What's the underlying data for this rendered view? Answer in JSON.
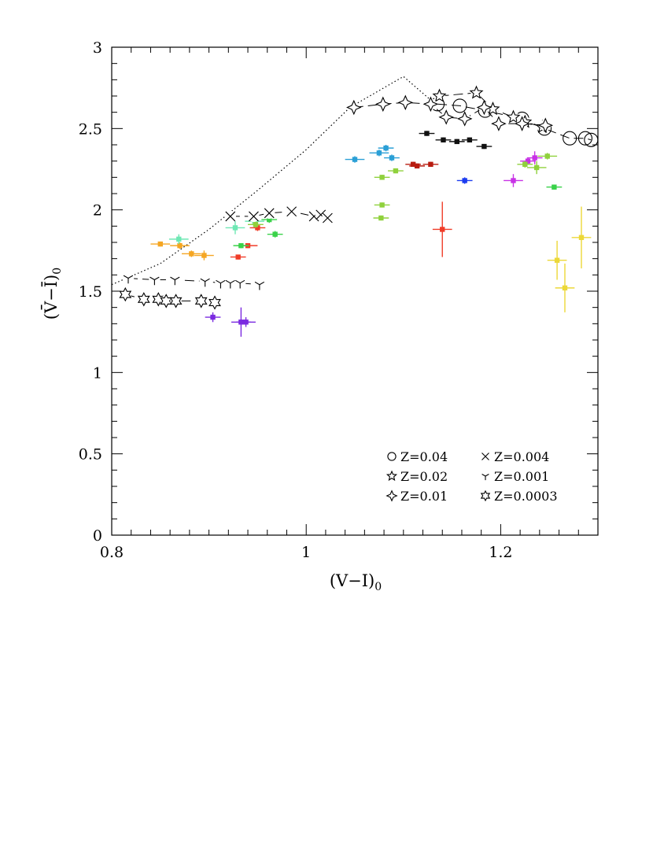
{
  "chart_data": {
    "type": "scatter",
    "xlabel_base": "(V−I)",
    "xlabel_sub": "0",
    "ylabel_base": "(V̄−Ī)",
    "ylabel_sub": "0",
    "xlim": [
      0.8,
      1.3
    ],
    "ylim": [
      0,
      3
    ],
    "x_ticks": [
      {
        "value": 0.8,
        "label": "0.8"
      },
      {
        "value": 1.0,
        "label": "1"
      },
      {
        "value": 1.2,
        "label": "1.2"
      }
    ],
    "y_ticks": [
      {
        "value": 0,
        "label": "0"
      },
      {
        "value": 0.5,
        "label": "0.5"
      },
      {
        "value": 1,
        "label": "1"
      },
      {
        "value": 1.5,
        "label": "1.5"
      },
      {
        "value": 2,
        "label": "2"
      },
      {
        "value": 2.5,
        "label": "2.5"
      },
      {
        "value": 3,
        "label": "3"
      }
    ],
    "legend": {
      "placement": "bottom-right",
      "entries": [
        {
          "label": "Z=0.04",
          "marker": "circle"
        },
        {
          "label": "Z=0.004",
          "marker": "x"
        },
        {
          "label": "Z=0.02",
          "marker": "star5"
        },
        {
          "label": "Z=0.001",
          "marker": "tri"
        },
        {
          "label": "Z=0.01",
          "marker": "star4"
        },
        {
          "label": "Z=0.0003",
          "marker": "star6"
        }
      ]
    },
    "model_series": [
      {
        "name": "Z=0.04",
        "marker": "circle",
        "points": [
          [
            1.135,
            2.65
          ],
          [
            1.158,
            2.64
          ],
          [
            1.184,
            2.61
          ],
          [
            1.222,
            2.56
          ],
          [
            1.245,
            2.5
          ],
          [
            1.271,
            2.44
          ],
          [
            1.287,
            2.44
          ],
          [
            1.293,
            2.43
          ]
        ]
      },
      {
        "name": "Z=0.02",
        "marker": "star5",
        "points": [
          [
            1.137,
            2.7
          ],
          [
            1.175,
            2.72
          ],
          [
            1.192,
            2.62
          ],
          [
            1.213,
            2.57
          ],
          [
            1.225,
            2.54
          ],
          [
            1.243,
            2.51
          ]
        ]
      },
      {
        "name": "Z=0.01",
        "marker": "star4",
        "points": [
          [
            1.049,
            2.63
          ],
          [
            1.079,
            2.65
          ],
          [
            1.102,
            2.66
          ],
          [
            1.128,
            2.65
          ],
          [
            1.144,
            2.57
          ],
          [
            1.163,
            2.56
          ],
          [
            1.183,
            2.63
          ],
          [
            1.198,
            2.53
          ],
          [
            1.222,
            2.53
          ],
          [
            1.246,
            2.52
          ]
        ]
      },
      {
        "name": "Z=0.004",
        "marker": "x",
        "points": [
          [
            0.922,
            1.96
          ],
          [
            0.946,
            1.96
          ],
          [
            0.962,
            1.98
          ],
          [
            0.985,
            1.99
          ],
          [
            1.008,
            1.96
          ],
          [
            1.015,
            1.97
          ],
          [
            1.022,
            1.95
          ]
        ]
      },
      {
        "name": "Z=0.001",
        "marker": "tri",
        "points": [
          [
            0.817,
            1.58
          ],
          [
            0.844,
            1.57
          ],
          [
            0.865,
            1.57
          ],
          [
            0.896,
            1.56
          ],
          [
            0.912,
            1.55
          ],
          [
            0.922,
            1.55
          ],
          [
            0.932,
            1.55
          ],
          [
            0.952,
            1.54
          ]
        ]
      },
      {
        "name": "Z=0.0003",
        "marker": "star6",
        "points": [
          [
            0.814,
            1.48
          ],
          [
            0.833,
            1.45
          ],
          [
            0.848,
            1.45
          ],
          [
            0.856,
            1.44
          ],
          [
            0.866,
            1.44
          ],
          [
            0.892,
            1.44
          ],
          [
            0.906,
            1.43
          ]
        ]
      }
    ],
    "dotted_curve": [
      [
        0.8,
        1.54
      ],
      [
        0.85,
        1.67
      ],
      [
        0.9,
        1.88
      ],
      [
        0.95,
        2.12
      ],
      [
        1.0,
        2.37
      ],
      [
        1.045,
        2.63
      ],
      [
        1.1,
        2.82
      ],
      [
        1.131,
        2.66
      ]
    ],
    "observations": [
      {
        "x": 0.85,
        "y": 1.79,
        "xerr": 0.01,
        "yerr": 0.015,
        "color": "#f5a623"
      },
      {
        "x": 0.87,
        "y": 1.78,
        "xerr": 0.01,
        "yerr": 0.02,
        "color": "#f5a623"
      },
      {
        "x": 0.882,
        "y": 1.73,
        "xerr": 0.01,
        "yerr": 0.02,
        "color": "#f5a623"
      },
      {
        "x": 0.895,
        "y": 1.72,
        "xerr": 0.01,
        "yerr": 0.03,
        "color": "#f5a623"
      },
      {
        "x": 0.869,
        "y": 1.82,
        "xerr": 0.01,
        "yerr": 0.03,
        "color": "#6ee8b4"
      },
      {
        "x": 0.927,
        "y": 1.89,
        "xerr": 0.01,
        "yerr": 0.04,
        "color": "#6ee8b4"
      },
      {
        "x": 0.947,
        "y": 1.93,
        "xerr": 0.01,
        "yerr": 0.04,
        "color": "#6ee8b4"
      },
      {
        "x": 0.93,
        "y": 1.71,
        "xerr": 0.008,
        "yerr": 0.015,
        "color": "#f03c28"
      },
      {
        "x": 0.94,
        "y": 1.78,
        "xerr": 0.01,
        "yerr": 0.015,
        "color": "#f03c28"
      },
      {
        "x": 0.95,
        "y": 1.89,
        "xerr": 0.008,
        "yerr": 0.02,
        "color": "#f03c28"
      },
      {
        "x": 0.933,
        "y": 1.78,
        "xerr": 0.008,
        "yerr": 0.015,
        "color": "#3ad24a"
      },
      {
        "x": 0.962,
        "y": 1.94,
        "xerr": 0.008,
        "yerr": 0.02,
        "color": "#3ad24a"
      },
      {
        "x": 0.968,
        "y": 1.85,
        "xerr": 0.008,
        "yerr": 0.02,
        "color": "#3ad24a"
      },
      {
        "x": 0.948,
        "y": 1.91,
        "xerr": 0.008,
        "yerr": 0.02,
        "color": "#8fd13c"
      },
      {
        "x": 0.904,
        "y": 1.34,
        "xerr": 0.008,
        "yerr": 0.03,
        "color": "#7a2ae0"
      },
      {
        "x": 0.933,
        "y": 1.31,
        "xerr": 0.01,
        "yerr": 0.09,
        "color": "#7a2ae0"
      },
      {
        "x": 0.938,
        "y": 1.31,
        "xerr": 0.01,
        "yerr": 0.03,
        "color": "#7a2ae0"
      },
      {
        "x": 1.05,
        "y": 2.31,
        "xerr": 0.01,
        "yerr": 0.02,
        "color": "#2a9fd6"
      },
      {
        "x": 1.075,
        "y": 2.35,
        "xerr": 0.01,
        "yerr": 0.02,
        "color": "#2a9fd6"
      },
      {
        "x": 1.082,
        "y": 2.38,
        "xerr": 0.008,
        "yerr": 0.02,
        "color": "#2a9fd6"
      },
      {
        "x": 1.088,
        "y": 2.32,
        "xerr": 0.008,
        "yerr": 0.02,
        "color": "#2a9fd6"
      },
      {
        "x": 1.078,
        "y": 2.2,
        "xerr": 0.008,
        "yerr": 0.015,
        "color": "#8fd13c"
      },
      {
        "x": 1.092,
        "y": 2.24,
        "xerr": 0.008,
        "yerr": 0.015,
        "color": "#8fd13c"
      },
      {
        "x": 1.078,
        "y": 2.03,
        "xerr": 0.008,
        "yerr": 0.015,
        "color": "#8fd13c"
      },
      {
        "x": 1.077,
        "y": 1.95,
        "xerr": 0.008,
        "yerr": 0.015,
        "color": "#8fd13c"
      },
      {
        "x": 1.11,
        "y": 2.28,
        "xerr": 0.008,
        "yerr": 0.015,
        "color": "#b81c10"
      },
      {
        "x": 1.114,
        "y": 2.27,
        "xerr": 0.008,
        "yerr": 0.015,
        "color": "#b81c10"
      },
      {
        "x": 1.128,
        "y": 2.28,
        "xerr": 0.008,
        "yerr": 0.015,
        "color": "#b81c10"
      },
      {
        "x": 1.14,
        "y": 1.88,
        "xerr": 0.01,
        "yerr": 0.17,
        "color": "#f03c28"
      },
      {
        "x": 1.124,
        "y": 2.47,
        "xerr": 0.008,
        "yerr": 0.015,
        "color": "#111111"
      },
      {
        "x": 1.141,
        "y": 2.43,
        "xerr": 0.008,
        "yerr": 0.015,
        "color": "#111111"
      },
      {
        "x": 1.155,
        "y": 2.42,
        "xerr": 0.008,
        "yerr": 0.015,
        "color": "#111111"
      },
      {
        "x": 1.168,
        "y": 2.43,
        "xerr": 0.008,
        "yerr": 0.015,
        "color": "#111111"
      },
      {
        "x": 1.183,
        "y": 2.39,
        "xerr": 0.008,
        "yerr": 0.015,
        "color": "#111111"
      },
      {
        "x": 1.163,
        "y": 2.18,
        "xerr": 0.008,
        "yerr": 0.02,
        "color": "#1c3cf0"
      },
      {
        "x": 1.213,
        "y": 2.18,
        "xerr": 0.01,
        "yerr": 0.04,
        "color": "#c832e6"
      },
      {
        "x": 1.228,
        "y": 2.3,
        "xerr": 0.008,
        "yerr": 0.02,
        "color": "#c832e6"
      },
      {
        "x": 1.235,
        "y": 2.32,
        "xerr": 0.008,
        "yerr": 0.04,
        "color": "#c832e6"
      },
      {
        "x": 1.225,
        "y": 2.28,
        "xerr": 0.008,
        "yerr": 0.02,
        "color": "#8fd13c"
      },
      {
        "x": 1.237,
        "y": 2.26,
        "xerr": 0.01,
        "yerr": 0.04,
        "color": "#8fd13c"
      },
      {
        "x": 1.248,
        "y": 2.33,
        "xerr": 0.01,
        "yerr": 0.02,
        "color": "#8fd13c"
      },
      {
        "x": 1.255,
        "y": 2.14,
        "xerr": 0.008,
        "yerr": 0.015,
        "color": "#3ad24a"
      },
      {
        "x": 1.258,
        "y": 1.69,
        "xerr": 0.01,
        "yerr": 0.12,
        "color": "#ecd838"
      },
      {
        "x": 1.266,
        "y": 1.52,
        "xerr": 0.01,
        "yerr": 0.15,
        "color": "#ecd838"
      },
      {
        "x": 1.283,
        "y": 1.83,
        "xerr": 0.01,
        "yerr": 0.19,
        "color": "#ecd838"
      }
    ]
  }
}
